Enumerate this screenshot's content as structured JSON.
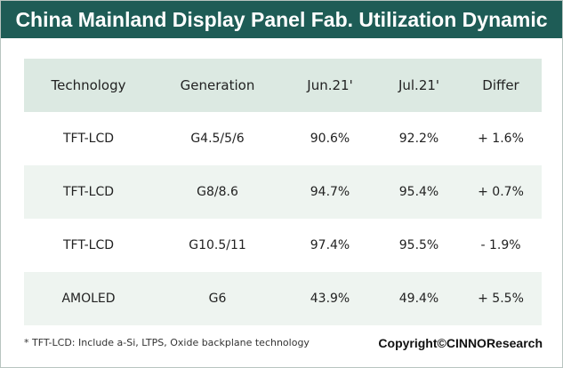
{
  "header": {
    "title": "China Mainland Display Panel Fab. Utilization Dynamic"
  },
  "table": {
    "columns": [
      "Technology",
      "Generation",
      "Jun.21'",
      "Jul.21'",
      "Differ"
    ],
    "rows": [
      [
        "TFT-LCD",
        "G4.5/5/6",
        "90.6%",
        "92.2%",
        "+ 1.6%"
      ],
      [
        "TFT-LCD",
        "G8/8.6",
        "94.7%",
        "95.4%",
        "+ 0.7%"
      ],
      [
        "TFT-LCD",
        "G10.5/11",
        "97.4%",
        "95.5%",
        "- 1.9%"
      ],
      [
        "AMOLED",
        "G6",
        "43.9%",
        "49.4%",
        "+ 5.5%"
      ]
    ]
  },
  "footer": {
    "note": "* TFT-LCD: Include a-Si, LTPS, Oxide backplane technology",
    "copyright": "Copyright©CINNOResearch"
  }
}
